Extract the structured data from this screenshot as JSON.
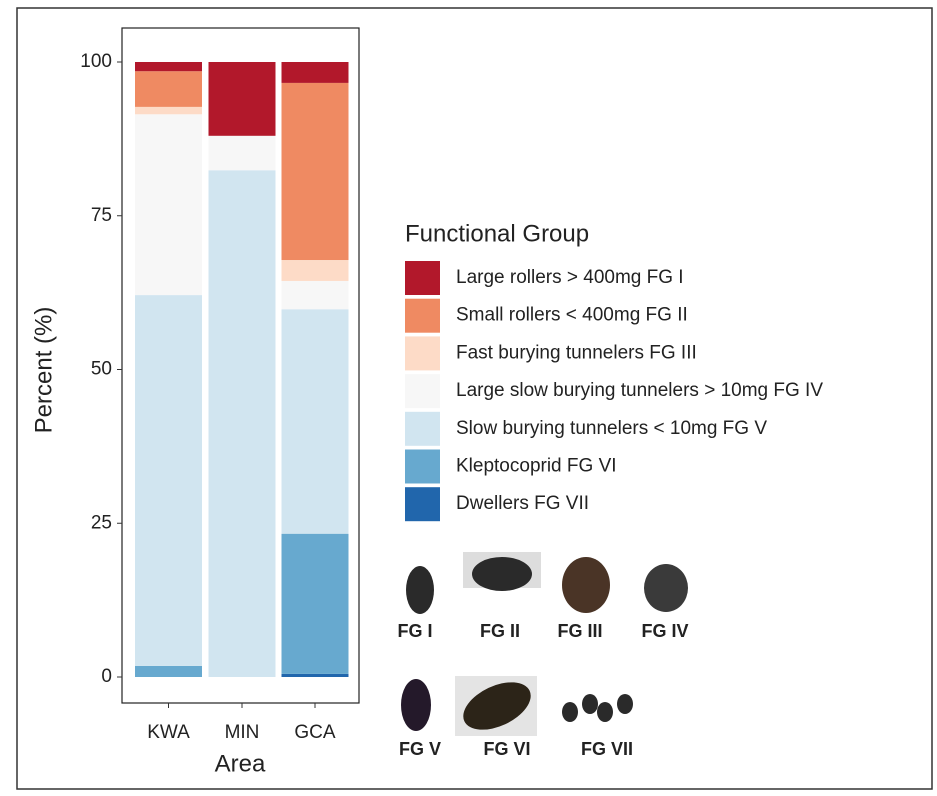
{
  "chart_data": {
    "type": "stacked_bar",
    "x_label": "Area",
    "y_label": "Percent (%)",
    "legend_title": "Functional Group",
    "categories": [
      "KWA",
      "MIN",
      "GCA"
    ],
    "series": [
      {
        "name": "Large rollers > 400mg FG I",
        "color": "#b2182b",
        "values": [
          1.5,
          12.0,
          3.4
        ]
      },
      {
        "name": "Small rollers < 400mg  FG II",
        "color": "#ef8a62",
        "values": [
          5.8,
          0,
          28.8
        ]
      },
      {
        "name": "Fast burying tunnelers FG III",
        "color": "#fddbc7",
        "values": [
          1.2,
          0,
          3.4
        ]
      },
      {
        "name": "Large slow burying tunnelers > 10mg FG IV",
        "color": "#f7f7f7",
        "values": [
          29.4,
          5.6,
          4.6
        ]
      },
      {
        "name": "Slow burying tunnelers  < 10mg FG V",
        "color": "#d1e5f0",
        "values": [
          60.3,
          82.4,
          36.5
        ]
      },
      {
        "name": "Kleptocoprid FG VI",
        "color": "#67a9cf",
        "values": [
          1.8,
          0,
          22.8
        ]
      },
      {
        "name": "Dwellers FG VII",
        "color": "#2166ac",
        "values": [
          0,
          0,
          0.5
        ]
      }
    ],
    "ylim": [
      0,
      100
    ],
    "yticks": [
      0,
      25,
      50,
      75,
      100
    ],
    "grid": false,
    "images": [
      "FG I",
      "FG II",
      "FG III",
      "FG IV",
      "FG V",
      "FG VI",
      "FG VII"
    ]
  }
}
